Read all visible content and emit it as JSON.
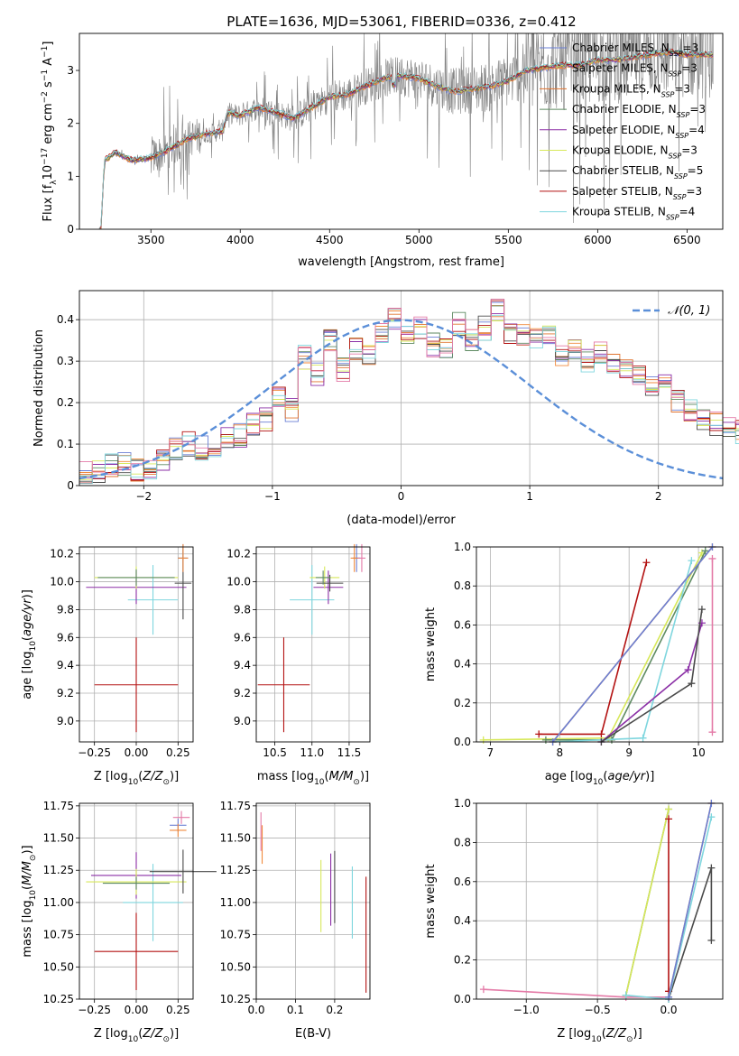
{
  "figure": {
    "title": "PLATE=1636, MJD=53061, FIBERID=0336, z=0.412"
  },
  "colors": {
    "Chabrier MILES": "#6a7fd4",
    "Salpeter MILES": "#f08a3c",
    "Kroupa MILES": "#e0732f",
    "Chabrier ELODIE": "#5e8a62",
    "Salpeter ELODIE": "#8b2fa6",
    "Kroupa ELODIE": "#d7e85a",
    "Chabrier STELIB": "#4a4a4a",
    "Salpeter STELIB": "#b31212",
    "Kroupa STELIB": "#7fd6de",
    "extra": "#e47aa7",
    "extra2": "#f0a060",
    "observed": "#808080",
    "gauss": "#5b8fd8"
  },
  "chart_data": [
    {
      "id": "spectrum",
      "type": "line",
      "xlabel": "wavelength [Angstrom, rest frame]",
      "ylabel": "Flux [f_λ 10^-17 erg cm^-2 s^-1 A^-1]",
      "xlim": [
        3100,
        6700
      ],
      "ylim": [
        0,
        3.7
      ],
      "xticks": [
        3500,
        4000,
        4500,
        5000,
        5500,
        6000,
        6500
      ],
      "yticks": [
        0,
        1,
        2,
        3
      ],
      "grid": false,
      "legend_placement": "upper-right",
      "legend": [
        {
          "model": "Chabrier MILES",
          "n_ssp": "3"
        },
        {
          "model": "Salpeter MILES",
          "n_ssp": "3"
        },
        {
          "model": "Kroupa MILES",
          "n_ssp": "3"
        },
        {
          "model": "Chabrier ELODIE",
          "n_ssp": "3"
        },
        {
          "model": "Salpeter ELODIE",
          "n_ssp": "4"
        },
        {
          "model": "Kroupa ELODIE",
          "n_ssp": "3"
        },
        {
          "model": "Chabrier STELIB",
          "n_ssp": "5"
        },
        {
          "model": "Salpeter STELIB",
          "n_ssp": "3"
        },
        {
          "model": "Kroupa STELIB",
          "n_ssp": "4"
        }
      ],
      "continuum_knots": [
        [
          3220,
          0.0
        ],
        [
          3240,
          1.3
        ],
        [
          3300,
          1.45
        ],
        [
          3400,
          1.3
        ],
        [
          3500,
          1.35
        ],
        [
          3600,
          1.5
        ],
        [
          3700,
          1.7
        ],
        [
          3800,
          1.8
        ],
        [
          3900,
          1.85
        ],
        [
          3930,
          2.2
        ],
        [
          4000,
          2.15
        ],
        [
          4100,
          2.3
        ],
        [
          4200,
          2.2
        ],
        [
          4300,
          2.1
        ],
        [
          4400,
          2.3
        ],
        [
          4500,
          2.5
        ],
        [
          4600,
          2.55
        ],
        [
          4700,
          2.7
        ],
        [
          4800,
          2.85
        ],
        [
          4900,
          2.9
        ],
        [
          5000,
          2.85
        ],
        [
          5100,
          2.7
        ],
        [
          5200,
          2.6
        ],
        [
          5300,
          2.65
        ],
        [
          5400,
          2.7
        ],
        [
          5500,
          2.8
        ],
        [
          5600,
          3.0
        ],
        [
          5700,
          3.05
        ],
        [
          5800,
          3.1
        ],
        [
          5900,
          3.1
        ],
        [
          6000,
          3.2
        ],
        [
          6100,
          3.2
        ],
        [
          6200,
          3.25
        ],
        [
          6300,
          3.3
        ],
        [
          6400,
          3.35
        ],
        [
          6500,
          3.3
        ],
        [
          6600,
          3.3
        ]
      ]
    },
    {
      "id": "residuals",
      "type": "step",
      "xlabel": "(data-model)/error",
      "ylabel": "Normed distribution",
      "xlim": [
        -2.5,
        2.5
      ],
      "ylim": [
        0,
        0.47
      ],
      "xticks": [
        -2,
        -1,
        0,
        1,
        2
      ],
      "yticks": [
        0,
        0.1,
        0.2,
        0.3,
        0.4
      ],
      "grid": true,
      "legend_placement": "upper-right",
      "gauss_label": "𝒩(0, 1)",
      "bin_edges_from": -2.5,
      "bin_width": 0.1,
      "reference_hist": [
        0.03,
        0.03,
        0.05,
        0.05,
        0.04,
        0.04,
        0.06,
        0.09,
        0.1,
        0.09,
        0.09,
        0.11,
        0.12,
        0.15,
        0.16,
        0.22,
        0.18,
        0.31,
        0.27,
        0.35,
        0.28,
        0.33,
        0.31,
        0.37,
        0.4,
        0.36,
        0.38,
        0.34,
        0.33,
        0.39,
        0.35,
        0.38,
        0.42,
        0.36,
        0.36,
        0.35,
        0.37,
        0.31,
        0.33,
        0.3,
        0.32,
        0.3,
        0.28,
        0.26,
        0.24,
        0.25,
        0.2,
        0.18,
        0.16,
        0.15,
        0.14,
        0.13,
        0.11,
        0.1,
        0.09,
        0.08,
        0.07,
        0.06,
        0.05,
        0.04
      ]
    },
    {
      "id": "age_vs_Z",
      "type": "errorbar",
      "xlabel": "Z [log10(Z/Z☉)]",
      "ylabel": "age [log10(age/yr)]",
      "xlim": [
        -0.34,
        0.34
      ],
      "ylim": [
        8.85,
        10.25
      ],
      "xticks": [
        "-0.25",
        "0.00",
        "0.25"
      ],
      "yticks": [
        "9.0",
        "9.2",
        "9.4",
        "9.6",
        "9.8",
        "10.0",
        "10.2"
      ],
      "points": [
        {
          "model": "Salpeter STELIB",
          "x": 0.0,
          "xerr": 0.25,
          "y": 9.26,
          "yerr": 0.34
        },
        {
          "model": "Kroupa STELIB",
          "x": 0.1,
          "xerr": 0.15,
          "y": 9.87,
          "yerr": 0.25
        },
        {
          "model": "Salpeter ELODIE",
          "x": 0.0,
          "xerr": 0.3,
          "y": 9.96,
          "yerr": 0.12
        },
        {
          "model": "Kroupa ELODIE",
          "x": 0.0,
          "xerr": 0.25,
          "y": 10.03,
          "yerr": 0.08
        },
        {
          "model": "Chabrier STELIB",
          "x": 0.28,
          "xerr": 0.05,
          "y": 9.99,
          "yerr": 0.26
        },
        {
          "model": "Chabrier MILES",
          "x": 0.28,
          "xerr": 0.03,
          "y": 10.17,
          "yerr": 0.1
        },
        {
          "model": "Salpeter MILES",
          "x": 0.28,
          "xerr": 0.03,
          "y": 10.17,
          "yerr": 0.1
        },
        {
          "model": "Chabrier ELODIE",
          "x": 0.0,
          "xerr": 0.23,
          "y": 10.03,
          "yerr": 0.06
        }
      ]
    },
    {
      "id": "age_vs_mass",
      "type": "errorbar",
      "xlabel": "mass [log10(M/M☉)]",
      "ylabel": "",
      "xlim": [
        10.25,
        11.78
      ],
      "ylim": [
        8.85,
        10.25
      ],
      "xticks": [
        "10.5",
        "11.0",
        "11.5"
      ],
      "yticks": [
        "9.0",
        "9.2",
        "9.4",
        "9.6",
        "9.8",
        "10.0",
        "10.2"
      ],
      "points": [
        {
          "model": "Salpeter STELIB",
          "x": 10.62,
          "xerr": 0.35,
          "y": 9.26,
          "yerr": 0.34
        },
        {
          "model": "Kroupa STELIB",
          "x": 11.0,
          "xerr": 0.3,
          "y": 9.87,
          "yerr": 0.25
        },
        {
          "model": "Salpeter ELODIE",
          "x": 11.22,
          "xerr": 0.2,
          "y": 9.96,
          "yerr": 0.12
        },
        {
          "model": "Kroupa ELODIE",
          "x": 11.17,
          "xerr": 0.2,
          "y": 10.03,
          "yerr": 0.08
        },
        {
          "model": "Chabrier STELIB",
          "x": 11.24,
          "xerr": 0.18,
          "y": 9.99,
          "yerr": 0.06
        },
        {
          "model": "Chabrier MILES",
          "x": 11.6,
          "xerr": 0.05,
          "y": 10.17,
          "yerr": 0.1
        },
        {
          "model": "Salpeter MILES",
          "x": 11.57,
          "xerr": 0.05,
          "y": 10.17,
          "yerr": 0.1
        },
        {
          "model": "extra",
          "x": 11.67,
          "xerr": 0.05,
          "y": 10.17,
          "yerr": 0.1
        },
        {
          "model": "Chabrier ELODIE",
          "x": 11.15,
          "xerr": 0.1,
          "y": 10.03,
          "yerr": 0.05
        }
      ]
    },
    {
      "id": "mass_weight_vs_age",
      "type": "line",
      "xlabel": "age [log10(age/yr)]",
      "ylabel": "mass weight",
      "xlim": [
        6.8,
        10.35
      ],
      "ylim": [
        0,
        1.0
      ],
      "xticks": [
        "7",
        "8",
        "9",
        "10"
      ],
      "yticks": [
        "0.0",
        "0.2",
        "0.4",
        "0.6",
        "0.8",
        "1.0"
      ],
      "grid": true,
      "series": [
        {
          "model": "Salpeter STELIB",
          "x": [
            7.7,
            8.6,
            9.25
          ],
          "y": [
            0.04,
            0.04,
            0.92
          ]
        },
        {
          "model": "Kroupa ELODIE",
          "x": [
            6.9,
            8.7,
            10.05
          ],
          "y": [
            0.01,
            0.02,
            0.97
          ]
        },
        {
          "model": "Chabrier ELODIE",
          "x": [
            7.8,
            8.75,
            10.1
          ],
          "y": [
            0.01,
            0.01,
            0.98
          ]
        },
        {
          "model": "Kroupa STELIB",
          "x": [
            7.9,
            9.2,
            9.9
          ],
          "y": [
            0.0,
            0.02,
            0.93
          ]
        },
        {
          "model": "Salpeter ELODIE",
          "x": [
            8.6,
            9.85,
            10.05
          ],
          "y": [
            0.0,
            0.37,
            0.61
          ]
        },
        {
          "model": "Chabrier STELIB",
          "x": [
            8.6,
            9.9,
            10.05
          ],
          "y": [
            0.0,
            0.3,
            0.68
          ]
        },
        {
          "model": "Salpeter MILES",
          "x": [
            7.9,
            10.2
          ],
          "y": [
            0.0,
            1.0
          ]
        },
        {
          "model": "Chabrier MILES",
          "x": [
            7.9,
            10.2
          ],
          "y": [
            0.0,
            1.0
          ]
        },
        {
          "model": "extra",
          "x": [
            10.2,
            10.2
          ],
          "y": [
            0.05,
            0.94
          ]
        }
      ]
    },
    {
      "id": "mass_vs_Z",
      "type": "errorbar",
      "xlabel": "Z [log10(Z/Z☉)]",
      "ylabel": "mass [log10(M/M☉)]",
      "xlim": [
        -0.34,
        0.34
      ],
      "ylim": [
        10.25,
        11.77
      ],
      "xticks": [
        "-0.25",
        "0.00",
        "0.25"
      ],
      "yticks": [
        "10.25",
        "10.50",
        "10.75",
        "11.00",
        "11.25",
        "11.50",
        "11.75"
      ],
      "points": [
        {
          "model": "Salpeter STELIB",
          "x": 0.0,
          "xerr": 0.25,
          "y": 10.62,
          "yerr": 0.3
        },
        {
          "model": "Kroupa STELIB",
          "x": 0.1,
          "xerr": 0.18,
          "y": 11.0,
          "yerr": 0.3
        },
        {
          "model": "Salpeter ELODIE",
          "x": 0.0,
          "xerr": 0.27,
          "y": 11.21,
          "yerr": 0.18
        },
        {
          "model": "Kroupa ELODIE",
          "x": 0.0,
          "xerr": 0.3,
          "y": 11.16,
          "yerr": 0.1
        },
        {
          "model": "Chabrier STELIB",
          "x": 0.28,
          "xerr": 0.2,
          "y": 11.24,
          "yerr": 0.17
        },
        {
          "model": "Chabrier MILES",
          "x": 0.25,
          "xerr": 0.05,
          "y": 11.6,
          "yerr": 0.05
        },
        {
          "model": "Salpeter MILES",
          "x": 0.25,
          "xerr": 0.05,
          "y": 11.56,
          "yerr": 0.05
        },
        {
          "model": "extra",
          "x": 0.27,
          "xerr": 0.05,
          "y": 11.66,
          "yerr": 0.05
        },
        {
          "model": "Chabrier ELODIE",
          "x": 0.0,
          "xerr": 0.2,
          "y": 11.15,
          "yerr": 0.05
        }
      ]
    },
    {
      "id": "mass_vs_ebv",
      "type": "errorbar",
      "xlabel": "E(B-V)",
      "ylabel": "",
      "xlim": [
        0.0,
        0.29
      ],
      "ylim": [
        10.25,
        11.77
      ],
      "xticks": [
        "0.0",
        "0.1",
        "0.2"
      ],
      "yticks": [
        "10.25",
        "10.50",
        "10.75",
        "11.00",
        "11.25",
        "11.50",
        "11.75"
      ],
      "points": [
        {
          "model": "Salpeter STELIB",
          "x": 0.28,
          "xerr": 0,
          "y": 10.75,
          "yerr": 0.45
        },
        {
          "model": "Kroupa STELIB",
          "x": 0.245,
          "xerr": 0,
          "y": 11.0,
          "yerr": 0.28
        },
        {
          "model": "Salpeter ELODIE",
          "x": 0.19,
          "xerr": 0,
          "y": 11.1,
          "yerr": 0.28
        },
        {
          "model": "Chabrier STELIB",
          "x": 0.2,
          "xerr": 0,
          "y": 11.12,
          "yerr": 0.28
        },
        {
          "model": "Kroupa ELODIE",
          "x": 0.165,
          "xerr": 0,
          "y": 11.05,
          "yerr": 0.28
        },
        {
          "model": "Salpeter MILES",
          "x": 0.015,
          "xerr": 0,
          "y": 11.45,
          "yerr": 0.15
        },
        {
          "model": "extra",
          "x": 0.012,
          "xerr": 0,
          "y": 11.55,
          "yerr": 0.15
        }
      ]
    },
    {
      "id": "mass_weight_vs_Z",
      "type": "line",
      "xlabel": "Z [log10(Z/Z☉)]",
      "ylabel": "mass weight",
      "xlim": [
        -1.35,
        0.38
      ],
      "ylim": [
        0,
        1.0
      ],
      "xticks": [
        "-1.0",
        "-0.5",
        "0.0"
      ],
      "yticks": [
        "0.0",
        "0.2",
        "0.4",
        "0.6",
        "0.8",
        "1.0"
      ],
      "grid": true,
      "series": [
        {
          "model": "extra",
          "x": [
            -1.3,
            -0.3,
            0.0
          ],
          "y": [
            0.05,
            0.01,
            0.01
          ]
        },
        {
          "model": "Chabrier ELODIE",
          "x": [
            -0.3,
            0.0
          ],
          "y": [
            0.02,
            0.97
          ]
        },
        {
          "model": "Kroupa ELODIE",
          "x": [
            -0.3,
            0.0
          ],
          "y": [
            0.02,
            0.97
          ]
        },
        {
          "model": "Salpeter STELIB",
          "x": [
            0.0,
            0.0
          ],
          "y": [
            0.04,
            0.92
          ]
        },
        {
          "model": "Chabrier STELIB",
          "x": [
            0.0,
            0.3,
            0.3
          ],
          "y": [
            0.0,
            0.67,
            0.3
          ]
        },
        {
          "model": "Kroupa STELIB",
          "x": [
            -0.3,
            0.0,
            0.3
          ],
          "y": [
            0.02,
            0.0,
            0.93
          ]
        },
        {
          "model": "Salpeter MILES",
          "x": [
            0.0,
            0.3
          ],
          "y": [
            0.01,
            1.0
          ]
        },
        {
          "model": "Chabrier MILES",
          "x": [
            0.0,
            0.3
          ],
          "y": [
            0.01,
            1.0
          ]
        }
      ]
    }
  ]
}
